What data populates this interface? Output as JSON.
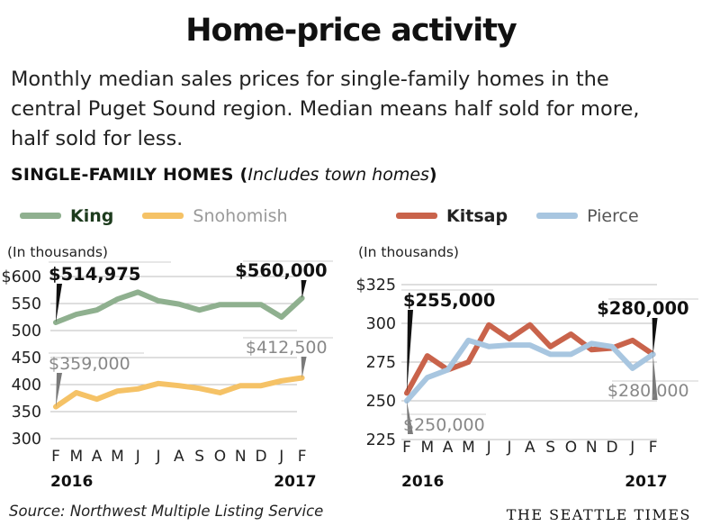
{
  "header": {
    "title": "Home-price activity",
    "subtitle": "Monthly median sales prices for single-family homes in the central Puget Sound region. Median means half sold for more, half sold for less.",
    "section_bold": "SINGLE-FAMILY HOMES (",
    "section_italic": "Includes town homes",
    "section_close": ")"
  },
  "colors": {
    "King": "#8fb08f",
    "Snohomish": "#f5c266",
    "Kitsap": "#c9634b",
    "Pierce": "#a8c6e0",
    "King_text": "#1d3b1d",
    "Snohomish_text": "#9a9a9a",
    "Kitsap_text": "#222222",
    "Pierce_text": "#555555"
  },
  "chart_data": [
    {
      "type": "line",
      "unit_label": "(In thousands)",
      "x": [
        "F",
        "M",
        "A",
        "M",
        "J",
        "J",
        "A",
        "S",
        "O",
        "N",
        "D",
        "J",
        "F"
      ],
      "year_labels": [
        {
          "index": 0,
          "label": "2016"
        },
        {
          "index": 12,
          "label": "2017"
        }
      ],
      "ylim": [
        300,
        600
      ],
      "yticks": [
        300,
        350,
        400,
        450,
        500,
        550,
        600
      ],
      "ytick_labels": [
        "300",
        "350",
        "400",
        "450",
        "500",
        "550",
        "$600"
      ],
      "grid": true,
      "series": [
        {
          "name": "King",
          "values": [
            514.975,
            530,
            538,
            558,
            571,
            555,
            549,
            538,
            548,
            548,
            548,
            525,
            560
          ]
        },
        {
          "name": "Snohomish",
          "values": [
            359,
            385,
            373,
            388,
            392,
            402,
            398,
            393,
            385,
            398,
            398,
            407,
            412.5
          ]
        }
      ],
      "annotations": [
        {
          "series": "King",
          "index": 0,
          "text": "$514,975"
        },
        {
          "series": "King",
          "index": 12,
          "text": "$560,000"
        },
        {
          "series": "Snohomish",
          "index": 0,
          "text": "$359,000"
        },
        {
          "series": "Snohomish",
          "index": 12,
          "text": "$412,500"
        }
      ]
    },
    {
      "type": "line",
      "unit_label": "(In thousands)",
      "x": [
        "F",
        "M",
        "A",
        "M",
        "J",
        "J",
        "A",
        "S",
        "O",
        "N",
        "D",
        "J",
        "F"
      ],
      "year_labels": [
        {
          "index": 0,
          "label": "2016"
        },
        {
          "index": 12,
          "label": "2017"
        }
      ],
      "ylim": [
        225,
        325
      ],
      "yticks": [
        225,
        250,
        275,
        300,
        325
      ],
      "ytick_labels": [
        "225",
        "250",
        "275",
        "300",
        "$325"
      ],
      "grid": true,
      "series": [
        {
          "name": "Kitsap",
          "values": [
            255,
            279,
            270,
            275,
            299,
            290,
            299,
            285,
            293,
            283,
            284,
            289,
            280
          ]
        },
        {
          "name": "Pierce",
          "values": [
            250,
            265,
            270,
            289,
            285,
            286,
            286,
            280,
            280,
            287,
            285,
            271,
            280
          ]
        }
      ],
      "annotations": [
        {
          "series": "Kitsap",
          "index": 0,
          "text": "$255,000"
        },
        {
          "series": "Kitsap",
          "index": 12,
          "text": "$280,000"
        },
        {
          "series": "Pierce",
          "index": 0,
          "text": "$250,000"
        },
        {
          "series": "Pierce",
          "index": 12,
          "text": "$280,000"
        }
      ]
    }
  ],
  "footer": {
    "source": "Source: Northwest Multiple Listing Service",
    "brand": "THE SEATTLE TIMES"
  }
}
